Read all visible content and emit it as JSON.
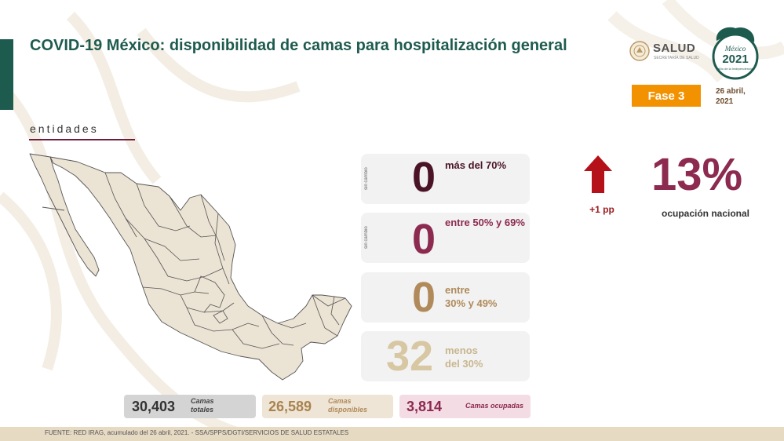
{
  "header": {
    "title": "COVID-19 México: disponibilidad de camas para hospitalización general",
    "logo_word": "SALUD",
    "logo_sub": "SECRETARÍA DE SALUD",
    "phase": "Fase 3",
    "date_line1": "26 abril,",
    "date_line2": "2021"
  },
  "emblem": {
    "line1": "México",
    "line2": "2021",
    "line3": "Año de la Independencia"
  },
  "section": {
    "label": "entidades"
  },
  "ranges": [
    {
      "count": "0",
      "side_note": "sin cambio",
      "line1": "más del 70%",
      "line2": "",
      "color": "#4a1426"
    },
    {
      "count": "0",
      "side_note": "sin cambio",
      "line1": "entre 50% y 69%",
      "line2": "",
      "color": "#8c2a4f"
    },
    {
      "count": "0",
      "side_note": "",
      "line1": "entre",
      "line2": "30% y 49%",
      "color": "#b08a5a"
    },
    {
      "count": "32",
      "side_note": "",
      "line1": "menos",
      "line2": "del 30%",
      "color": "#d7c7a3"
    }
  ],
  "national": {
    "change": "+1 pp",
    "value": "13%",
    "label": "ocupación nacional",
    "arrow_color": "#b5111b"
  },
  "beds": {
    "total_value": "30,403",
    "total_label1": "Camas",
    "total_label2": "totales",
    "available_value": "26,589",
    "available_label1": "Camas",
    "available_label2": "disponibles",
    "occupied_value": "3,814",
    "occupied_label": "Camas ocupadas"
  },
  "footer": {
    "source": "FUENTE: RED IRAG, acumulado del 26 abril, 2021. -  SSA/SPPS/DGTI/SERVICIOS DE SALUD ESTATALES"
  },
  "colors": {
    "primary_green": "#1e5b4f",
    "map_fill": "#ebe3d3",
    "map_stroke": "#555555"
  }
}
